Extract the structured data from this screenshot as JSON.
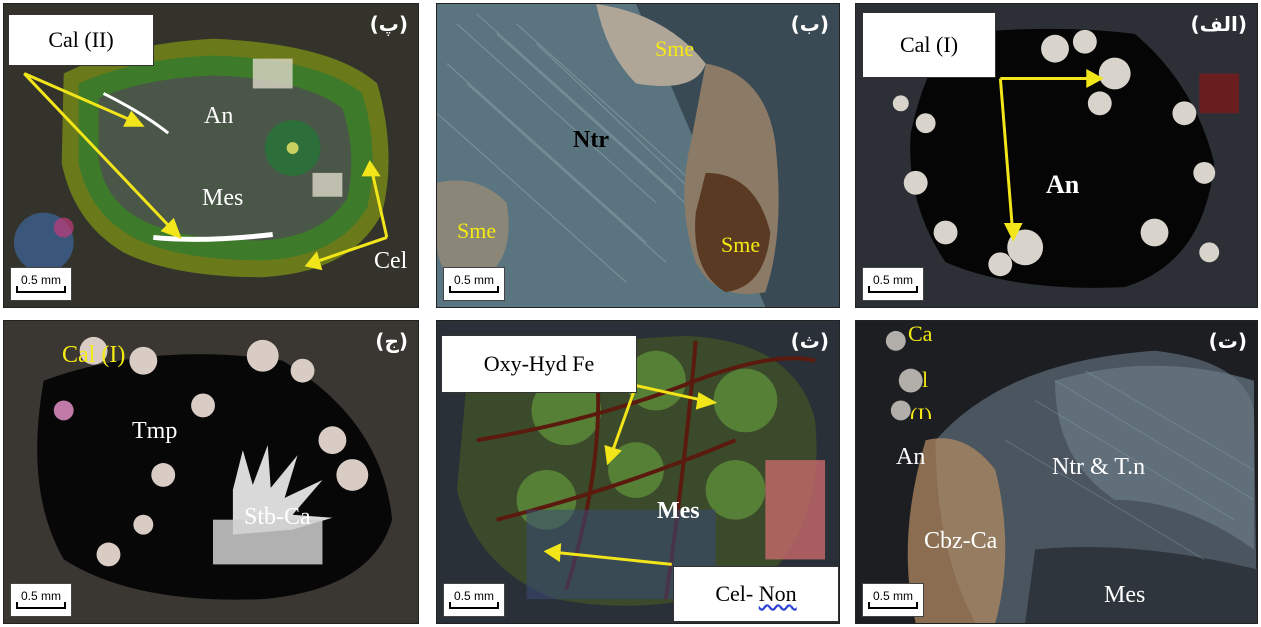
{
  "figure": {
    "top_right": {
      "persian_label": "(الف)",
      "box_label": "Cal (I)",
      "labels": {
        "an": "An"
      },
      "scale": "0.5 mm"
    },
    "top_middle": {
      "persian_label": "(ب)",
      "labels": {
        "ntr": "Ntr",
        "sme_top": "Sme",
        "sme_left": "Sme",
        "sme_right": "Sme"
      },
      "scale": "0.5 mm"
    },
    "top_left": {
      "persian_label": "(پ)",
      "box_label": "Cal (II)",
      "labels": {
        "an": "An",
        "mes": "Mes",
        "cel": "Cel"
      },
      "scale": "0.5 mm"
    },
    "bottom_right": {
      "persian_label": "(ت)",
      "labels": {
        "cal_1": "Ca",
        "cal_2": "l",
        "cal_3": "(I)",
        "an": "An",
        "ntr": "Ntr & T.n",
        "cbz": "Cbz-Ca",
        "mes": "Mes"
      },
      "scale": "0.5 mm"
    },
    "bottom_middle": {
      "persian_label": "(ث)",
      "box_top": "Oxy-Hyd Fe",
      "box_bottom_a": "Cel- ",
      "box_bottom_b": "Non",
      "labels": {
        "mes": "Mes"
      },
      "scale": "0.5 mm"
    },
    "bottom_left": {
      "persian_label": "(ج)",
      "labels": {
        "cal": "Cal (I)",
        "tmp": "Tmp",
        "stb": "Stb-Ca"
      },
      "scale": "0.5 mm"
    },
    "colors": {
      "arrow": "#f2e51a",
      "label_yellow": "#f5ea12",
      "label_white": "#ffffff"
    }
  }
}
